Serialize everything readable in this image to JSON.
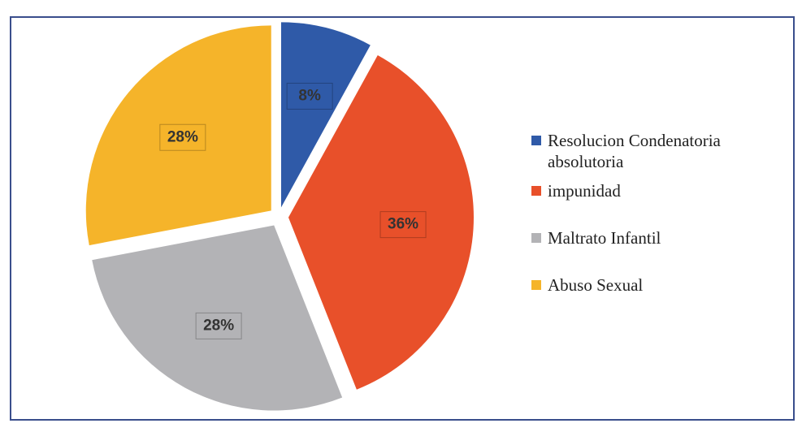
{
  "chart_data": {
    "type": "pie",
    "categories": [
      "Resolucion Condenatoria absolutoria",
      "impunidad",
      "Maltrato Infantil",
      "Abuso Sexual"
    ],
    "values": [
      8,
      36,
      28,
      28
    ],
    "value_labels": [
      "8%",
      "36%",
      "28%",
      "28%"
    ],
    "colors": [
      "#2f5aa8",
      "#e8502a",
      "#b3b3b6",
      "#f5b42a"
    ],
    "legend": "right"
  }
}
